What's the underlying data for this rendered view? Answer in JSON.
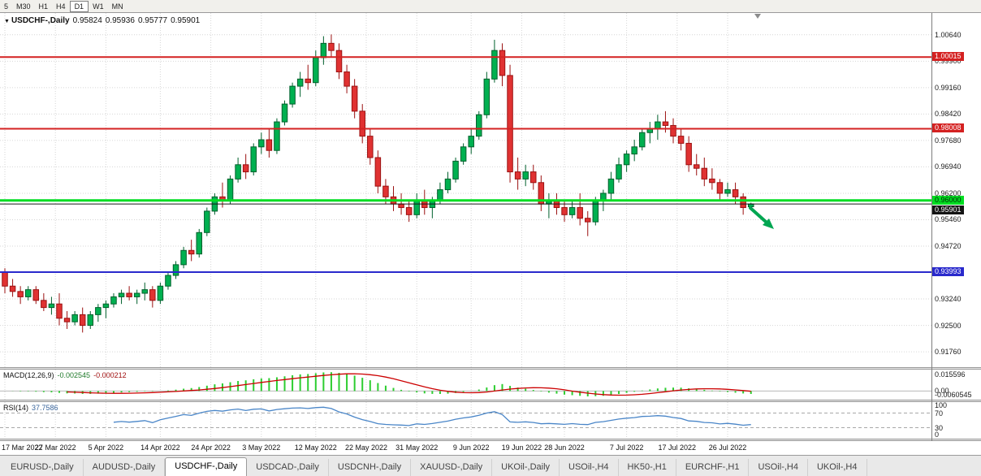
{
  "toolbar": {
    "timeframes": [
      {
        "label": "5",
        "active": false
      },
      {
        "label": "M30",
        "active": false
      },
      {
        "label": "H1",
        "active": false
      },
      {
        "label": "H4",
        "active": false
      },
      {
        "label": "D1",
        "active": true
      },
      {
        "label": "W1",
        "active": false
      },
      {
        "label": "MN",
        "active": false
      }
    ]
  },
  "header": {
    "dropdown_icon": "▼",
    "title": "USDCHF-,Daily",
    "open": "0.95824",
    "high": "0.95936",
    "low": "0.95777",
    "close": "0.95901"
  },
  "chart_data": {
    "type": "candlestick",
    "symbol": "USDCHF-",
    "timeframe": "Daily",
    "up_color": "#00b050",
    "up_edge": "#00602c",
    "down_color": "#e03232",
    "down_edge": "#9b1111",
    "ylim": [
      0.9133,
      1.0125
    ],
    "y_gridline_labels": [
      "1.00640",
      "0.99900",
      "0.99160",
      "0.98420",
      "0.97680",
      "0.96940",
      "0.96200",
      "0.95460",
      "0.94720",
      "0.93980",
      "0.93240",
      "0.92500",
      "0.91760"
    ],
    "x_labels": [
      {
        "text": "17 Mar 2022",
        "bar": 0
      },
      {
        "text": "27 Mar 2022",
        "bar": 6.5
      },
      {
        "text": "5 Apr 2022",
        "bar": 13
      },
      {
        "text": "14 Apr 2022",
        "bar": 20
      },
      {
        "text": "24 Apr 2022",
        "bar": 26.5
      },
      {
        "text": "3 May 2022",
        "bar": 33
      },
      {
        "text": "12 May 2022",
        "bar": 40
      },
      {
        "text": "22 May 2022",
        "bar": 46.5
      },
      {
        "text": "31 May 2022",
        "bar": 53
      },
      {
        "text": "9 Jun 2022",
        "bar": 60
      },
      {
        "text": "19 Jun 2022",
        "bar": 66.5
      },
      {
        "text": "28 Jun 2022",
        "bar": 72
      },
      {
        "text": "7 Jul 2022",
        "bar": 80
      },
      {
        "text": "17 Jul 2022",
        "bar": 86.5
      },
      {
        "text": "26 Jul 2022",
        "bar": 93
      }
    ],
    "hlines": [
      {
        "value": 1.00015,
        "label": "1.00015",
        "color": "#d42121",
        "width": 2,
        "text_color": "#ffffff"
      },
      {
        "value": 0.98008,
        "label": "0.98008",
        "color": "#d42121",
        "width": 2,
        "text_color": "#ffffff"
      },
      {
        "value": 0.96,
        "label": "0.96000",
        "color": "#00dd22",
        "width": 3,
        "text_color": "#002a00"
      },
      {
        "value": 0.95901,
        "label": "0.95901",
        "color": "#141414",
        "width": 1,
        "text_color": "#ffffff"
      },
      {
        "value": 0.93993,
        "label": "0.93993",
        "color": "#2929cc",
        "width": 2,
        "text_color": "#ffffff"
      }
    ],
    "arrow": {
      "direction": "down-right",
      "color": "#00a651"
    },
    "candles": [
      [
        0.94,
        0.941,
        0.934,
        0.936
      ],
      [
        0.936,
        0.938,
        0.933,
        0.9345
      ],
      [
        0.9345,
        0.936,
        0.931,
        0.933
      ],
      [
        0.933,
        0.936,
        0.932,
        0.935
      ],
      [
        0.935,
        0.936,
        0.931,
        0.932
      ],
      [
        0.932,
        0.934,
        0.929,
        0.93
      ],
      [
        0.93,
        0.933,
        0.928,
        0.931
      ],
      [
        0.931,
        0.934,
        0.925,
        0.927
      ],
      [
        0.927,
        0.929,
        0.924,
        0.926
      ],
      [
        0.926,
        0.929,
        0.925,
        0.928
      ],
      [
        0.928,
        0.93,
        0.923,
        0.925
      ],
      [
        0.925,
        0.929,
        0.924,
        0.928
      ],
      [
        0.928,
        0.931,
        0.926,
        0.93
      ],
      [
        0.93,
        0.932,
        0.927,
        0.931
      ],
      [
        0.931,
        0.934,
        0.93,
        0.933
      ],
      [
        0.933,
        0.935,
        0.931,
        0.934
      ],
      [
        0.934,
        0.936,
        0.932,
        0.933
      ],
      [
        0.933,
        0.935,
        0.931,
        0.934
      ],
      [
        0.934,
        0.937,
        0.932,
        0.935
      ],
      [
        0.935,
        0.936,
        0.93,
        0.932
      ],
      [
        0.932,
        0.937,
        0.931,
        0.936
      ],
      [
        0.936,
        0.94,
        0.935,
        0.939
      ],
      [
        0.939,
        0.943,
        0.938,
        0.942
      ],
      [
        0.942,
        0.947,
        0.941,
        0.946
      ],
      [
        0.946,
        0.949,
        0.943,
        0.945
      ],
      [
        0.945,
        0.952,
        0.944,
        0.951
      ],
      [
        0.951,
        0.958,
        0.95,
        0.957
      ],
      [
        0.957,
        0.962,
        0.956,
        0.961
      ],
      [
        0.961,
        0.965,
        0.958,
        0.96
      ],
      [
        0.96,
        0.967,
        0.959,
        0.966
      ],
      [
        0.966,
        0.972,
        0.965,
        0.97
      ],
      [
        0.97,
        0.973,
        0.966,
        0.968
      ],
      [
        0.968,
        0.976,
        0.967,
        0.975
      ],
      [
        0.975,
        0.979,
        0.973,
        0.977
      ],
      [
        0.977,
        0.98,
        0.972,
        0.974
      ],
      [
        0.974,
        0.983,
        0.973,
        0.982
      ],
      [
        0.982,
        0.988,
        0.981,
        0.987
      ],
      [
        0.987,
        0.993,
        0.986,
        0.992
      ],
      [
        0.992,
        0.996,
        0.989,
        0.994
      ],
      [
        0.994,
        0.998,
        0.991,
        0.993
      ],
      [
        0.993,
        1.002,
        0.992,
        1.0
      ],
      [
        1.0,
        1.006,
        0.998,
        1.004
      ],
      [
        1.004,
        1.0065,
        1.0,
        1.002
      ],
      [
        1.002,
        1.004,
        0.994,
        0.996
      ],
      [
        0.996,
        0.998,
        0.99,
        0.992
      ],
      [
        0.992,
        0.994,
        0.983,
        0.985
      ],
      [
        0.985,
        0.987,
        0.976,
        0.978
      ],
      [
        0.978,
        0.98,
        0.97,
        0.972
      ],
      [
        0.972,
        0.974,
        0.962,
        0.964
      ],
      [
        0.964,
        0.966,
        0.959,
        0.961
      ],
      [
        0.961,
        0.964,
        0.957,
        0.959
      ],
      [
        0.959,
        0.962,
        0.956,
        0.958
      ],
      [
        0.958,
        0.96,
        0.954,
        0.956
      ],
      [
        0.956,
        0.962,
        0.955,
        0.96
      ],
      [
        0.96,
        0.963,
        0.956,
        0.958
      ],
      [
        0.958,
        0.961,
        0.955,
        0.96
      ],
      [
        0.96,
        0.965,
        0.959,
        0.963
      ],
      [
        0.963,
        0.968,
        0.962,
        0.966
      ],
      [
        0.966,
        0.972,
        0.965,
        0.971
      ],
      [
        0.971,
        0.976,
        0.97,
        0.975
      ],
      [
        0.975,
        0.98,
        0.973,
        0.978
      ],
      [
        0.978,
        0.985,
        0.977,
        0.984
      ],
      [
        0.984,
        0.996,
        0.983,
        0.994
      ],
      [
        0.994,
        1.005,
        0.993,
        1.002
      ],
      [
        1.002,
        1.004,
        0.992,
        0.995
      ],
      [
        0.995,
        0.998,
        0.965,
        0.968
      ],
      [
        0.968,
        0.972,
        0.963,
        0.966
      ],
      [
        0.966,
        0.97,
        0.964,
        0.968
      ],
      [
        0.968,
        0.97,
        0.963,
        0.965
      ],
      [
        0.965,
        0.967,
        0.957,
        0.959
      ],
      [
        0.959,
        0.962,
        0.955,
        0.96
      ],
      [
        0.96,
        0.962,
        0.956,
        0.958
      ],
      [
        0.958,
        0.96,
        0.954,
        0.956
      ],
      [
        0.956,
        0.96,
        0.955,
        0.958
      ],
      [
        0.958,
        0.962,
        0.953,
        0.955
      ],
      [
        0.955,
        0.957,
        0.95,
        0.954
      ],
      [
        0.954,
        0.961,
        0.953,
        0.96
      ],
      [
        0.96,
        0.963,
        0.957,
        0.962
      ],
      [
        0.962,
        0.968,
        0.96,
        0.966
      ],
      [
        0.966,
        0.972,
        0.965,
        0.97
      ],
      [
        0.97,
        0.974,
        0.968,
        0.973
      ],
      [
        0.973,
        0.977,
        0.971,
        0.975
      ],
      [
        0.975,
        0.98,
        0.974,
        0.979
      ],
      [
        0.979,
        0.982,
        0.976,
        0.98
      ],
      [
        0.98,
        0.984,
        0.977,
        0.982
      ],
      [
        0.982,
        0.985,
        0.979,
        0.981
      ],
      [
        0.981,
        0.983,
        0.976,
        0.978
      ],
      [
        0.978,
        0.98,
        0.974,
        0.976
      ],
      [
        0.976,
        0.978,
        0.968,
        0.97
      ],
      [
        0.97,
        0.973,
        0.967,
        0.969
      ],
      [
        0.969,
        0.972,
        0.964,
        0.966
      ],
      [
        0.966,
        0.969,
        0.963,
        0.965
      ],
      [
        0.965,
        0.966,
        0.96,
        0.962
      ],
      [
        0.962,
        0.965,
        0.961,
        0.963
      ],
      [
        0.963,
        0.965,
        0.959,
        0.961
      ],
      [
        0.961,
        0.962,
        0.956,
        0.958
      ],
      [
        0.95824,
        0.95936,
        0.95777,
        0.95901
      ]
    ],
    "indicators": {
      "macd": {
        "label": "MACD(12,26,9)",
        "main_value": "-0.002545",
        "signal_value": "-0.000212",
        "axis_labels": [
          "0.015596",
          "0.00",
          "-0.0060545"
        ],
        "histogram_color": "#2dcd30",
        "signal_color": "#cc0000"
      },
      "rsi": {
        "label": "RSI(14)",
        "value": "37.7586",
        "axis_labels": [
          "100",
          "70",
          "30",
          "0"
        ],
        "levels": [
          70,
          30
        ],
        "line_color": "#4a86c8"
      }
    }
  },
  "tabs": {
    "items": [
      {
        "label": "EURUSD-,Daily",
        "active": false
      },
      {
        "label": "AUDUSD-,Daily",
        "active": false
      },
      {
        "label": "USDCHF-,Daily",
        "active": true
      },
      {
        "label": "USDCAD-,Daily",
        "active": false
      },
      {
        "label": "USDCNH-,Daily",
        "active": false
      },
      {
        "label": "XAUUSD-,Daily",
        "active": false
      },
      {
        "label": "UKOil-,Daily",
        "active": false
      },
      {
        "label": "USOil-,H4",
        "active": false
      },
      {
        "label": "HK50-,H1",
        "active": false
      },
      {
        "label": "EURCHF-,H1",
        "active": false
      },
      {
        "label": "USOil-,H4",
        "active": false
      },
      {
        "label": "UKOil-,H4",
        "active": false
      }
    ]
  }
}
